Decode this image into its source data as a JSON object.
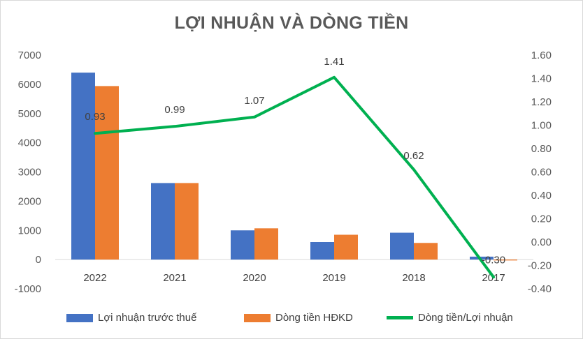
{
  "chart_data": {
    "type": "bar",
    "title": "LỢI NHUẬN VÀ DÒNG TIỀN",
    "categories": [
      "2022",
      "2021",
      "2020",
      "2019",
      "2018",
      "2017"
    ],
    "series": [
      {
        "name": "Lợi nhuận trước thuế",
        "kind": "bar",
        "axis": "left",
        "color": "#4472C4",
        "values": [
          6400,
          2620,
          1000,
          600,
          920,
          100
        ]
      },
      {
        "name": "Dòng tiền HĐKD",
        "kind": "bar",
        "axis": "left",
        "color": "#ED7D31",
        "values": [
          5940,
          2620,
          1070,
          850,
          570,
          -30
        ]
      },
      {
        "name": "Dòng tiền/Lợi nhuận",
        "kind": "line",
        "axis": "right",
        "color": "#00B050",
        "values": [
          0.93,
          0.99,
          1.07,
          1.41,
          0.62,
          -0.3
        ],
        "labels": [
          "0.93",
          "0.99",
          "1.07",
          "1.41",
          "0.62",
          "-0.30"
        ]
      }
    ],
    "y_left": {
      "min": -1000,
      "max": 7000,
      "step": 1000,
      "ticks": [
        "7000",
        "6000",
        "5000",
        "4000",
        "3000",
        "2000",
        "1000",
        "0",
        "-1000"
      ]
    },
    "y_right": {
      "min": -0.4,
      "max": 1.6,
      "step": 0.2,
      "ticks": [
        "1.60",
        "1.40",
        "1.20",
        "1.00",
        "0.80",
        "0.60",
        "0.40",
        "0.20",
        "0.00",
        "-0.20",
        "-0.40"
      ]
    },
    "grid": false,
    "legend_position": "bottom"
  }
}
